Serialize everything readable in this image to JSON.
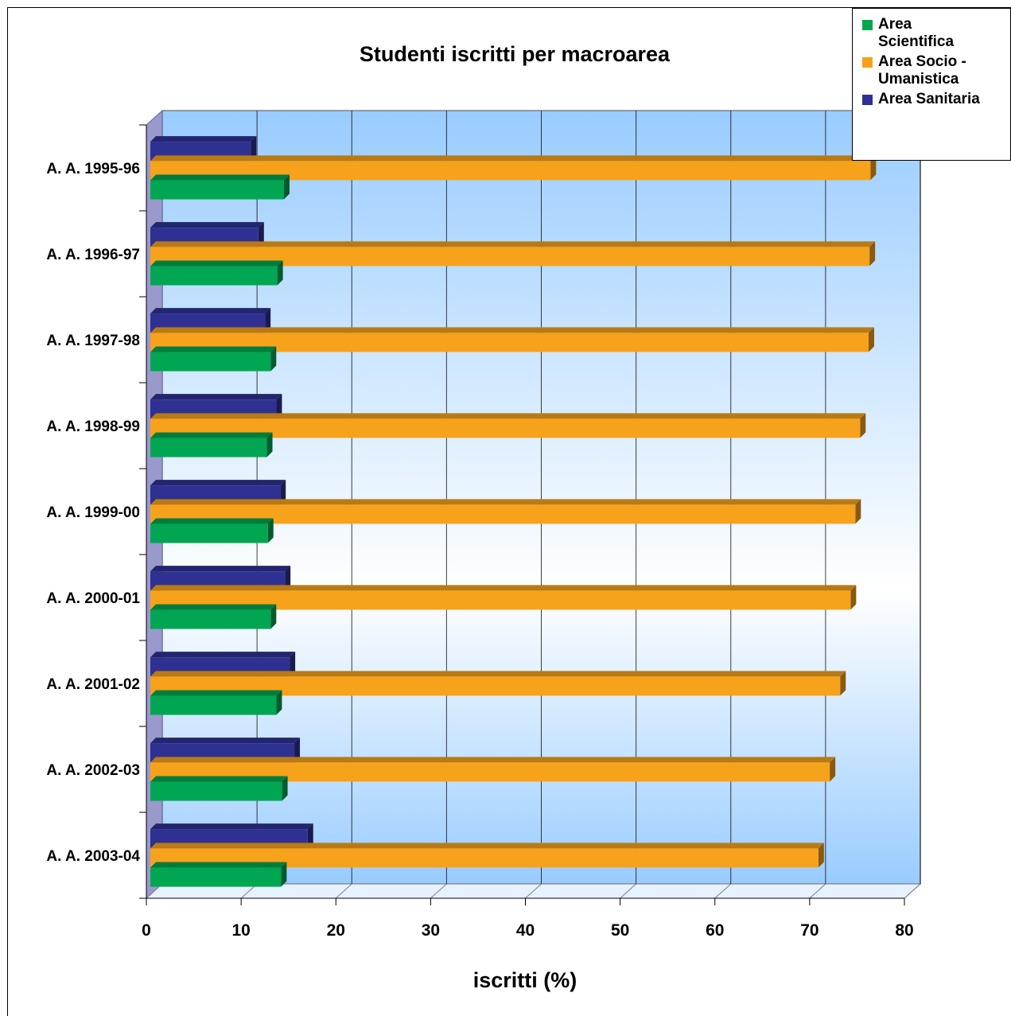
{
  "chart_data": {
    "type": "bar",
    "orientation": "horizontal",
    "three_d": true,
    "title": "Studenti iscritti per macroarea",
    "xlabel": "iscritti (%)",
    "ylabel": "",
    "xlim": [
      0,
      80
    ],
    "x_ticks": [
      "0",
      "10",
      "20",
      "30",
      "40",
      "50",
      "60",
      "70",
      "80"
    ],
    "grid": true,
    "legend_position": "top-right",
    "categories": [
      "A. A. 1995-96",
      "A. A. 1996-97",
      "A. A. 1997-98",
      "A. A. 1998-99",
      "A. A. 1999-00",
      "A. A. 2000-01",
      "A. A. 2001-02",
      "A. A. 2002-03",
      "A. A. 2003-04"
    ],
    "series": [
      {
        "name": "Area Scientifica",
        "color": "#00a651",
        "values": [
          14.1,
          13.4,
          12.7,
          12.3,
          12.4,
          12.7,
          13.3,
          13.9,
          13.8
        ]
      },
      {
        "name": "Area Socio - Umanistica",
        "color": "#f7a21b",
        "values": [
          76.0,
          75.9,
          75.8,
          74.9,
          74.4,
          73.9,
          72.8,
          71.7,
          70.5
        ]
      },
      {
        "name": "Area Sanitaria",
        "color": "#2e3192",
        "values": [
          10.6,
          11.4,
          12.1,
          13.3,
          13.7,
          14.2,
          14.7,
          15.2,
          16.6
        ]
      }
    ]
  },
  "legend": {
    "items": [
      {
        "label_lines": [
          "Area",
          "Scientifica"
        ],
        "color": "#00a651"
      },
      {
        "label_lines": [
          "Area Socio -",
          "Umanistica"
        ],
        "color": "#f7a21b"
      },
      {
        "label_lines": [
          "Area Sanitaria"
        ],
        "color": "#2e3192"
      }
    ]
  }
}
